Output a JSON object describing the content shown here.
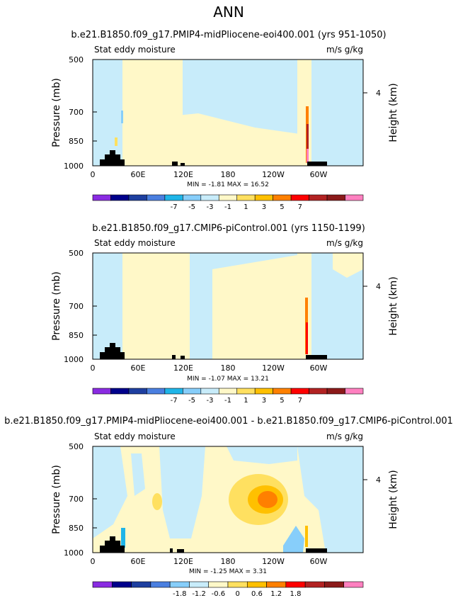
{
  "page_title": "ANN",
  "chart_data": [
    {
      "type": "heatmap",
      "title": "b.e21.B1850.f09_g17.PMIP4-midPliocene-eoi400.001 (yrs 951-1050)",
      "field_label": "Stat eddy moisture",
      "units_label": "m/s g/kg",
      "ylabel": "Pressure (mb)",
      "y2label": "Height (km)",
      "y_ticks": [
        "500",
        "700",
        "850",
        "1000"
      ],
      "y2_ticks": [
        "4"
      ],
      "x_ticks": [
        "0",
        "60E",
        "120E",
        "180",
        "120W",
        "60W"
      ],
      "stats": "MIN =   -1.81   MAX =   16.52",
      "colorbar_labels": [
        "-7",
        "-5",
        "-3",
        "-1",
        "1",
        "3",
        "5",
        "7"
      ],
      "colorbar_colors": [
        "#8a2be2",
        "#00008b",
        "#1e3fa0",
        "#4a7fe0",
        "#1fb5e8",
        "#87cefa",
        "#c8ecfa",
        "#fff8c8",
        "#ffe060",
        "#ffc000",
        "#ff8000",
        "#ff0000",
        "#b22222",
        "#8b1a1a",
        "#ff80c0"
      ]
    },
    {
      "type": "heatmap",
      "title": "b.e21.B1850.f09_g17.CMIP6-piControl.001 (yrs 1150-1199)",
      "field_label": "Stat eddy moisture",
      "units_label": "m/s g/kg",
      "ylabel": "Pressure (mb)",
      "y2label": "Height (km)",
      "y_ticks": [
        "500",
        "700",
        "850",
        "1000"
      ],
      "y2_ticks": [
        "4"
      ],
      "x_ticks": [
        "0",
        "60E",
        "120E",
        "180",
        "120W",
        "60W"
      ],
      "stats": "MIN =   -1.07   MAX =   13.21",
      "colorbar_labels": [
        "-7",
        "-5",
        "-3",
        "-1",
        "1",
        "3",
        "5",
        "7"
      ],
      "colorbar_colors": [
        "#8a2be2",
        "#00008b",
        "#1e3fa0",
        "#4a7fe0",
        "#1fb5e8",
        "#87cefa",
        "#c8ecfa",
        "#fff8c8",
        "#ffe060",
        "#ffc000",
        "#ff8000",
        "#ff0000",
        "#b22222",
        "#8b1a1a",
        "#ff80c0"
      ]
    },
    {
      "type": "heatmap",
      "title": "b.e21.B1850.f09_g17.PMIP4-midPliocene-eoi400.001 - b.e21.B1850.f09_g17.CMIP6-piControl.001",
      "field_label": "Stat eddy moisture",
      "units_label": "m/s g/kg",
      "ylabel": "Pressure (mb)",
      "y2label": "Height (km)",
      "y_ticks": [
        "500",
        "700",
        "850",
        "1000"
      ],
      "y2_ticks": [
        "4"
      ],
      "x_ticks": [
        "0",
        "60E",
        "120E",
        "180",
        "120W",
        "60W"
      ],
      "stats": "MIN =   -1.25   MAX =   3.31",
      "colorbar_labels": [
        "-1.8",
        "-1.2",
        "-0.6",
        "0",
        "0.6",
        "1.2",
        "1.8"
      ],
      "colorbar_colors": [
        "#8a2be2",
        "#00008b",
        "#1e3fa0",
        "#4a7fe0",
        "#87cefa",
        "#c8ecfa",
        "#fff8c8",
        "#ffe060",
        "#ffc000",
        "#ff8000",
        "#ff0000",
        "#b22222",
        "#8b1a1a",
        "#ff80c0"
      ]
    }
  ]
}
